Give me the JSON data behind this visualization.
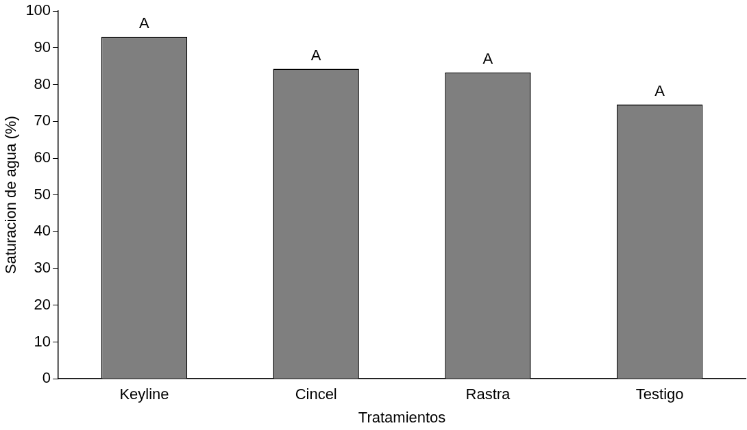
{
  "chart_data": {
    "type": "bar",
    "xlabel": "Tratamientos",
    "ylabel": "Saturacion de agua (%)",
    "categories": [
      "Keyline",
      "Cincel",
      "Rastra",
      "Testigo"
    ],
    "values": [
      93,
      84.3,
      83.3,
      74.6
    ],
    "color": "#7f7f7f",
    "ylim": [
      0,
      100
    ],
    "yticks": [
      0,
      10,
      20,
      30,
      40,
      50,
      60,
      70,
      80,
      90,
      100
    ],
    "grid": false,
    "legend": false,
    "annotations": [
      {
        "text": "A",
        "x": "Keyline",
        "y": 93
      },
      {
        "text": "A",
        "x": "Cincel",
        "y": 84.3
      },
      {
        "text": "A",
        "x": "Rastra",
        "y": 83.3
      },
      {
        "text": "A",
        "x": "Testigo",
        "y": 74.6
      }
    ]
  }
}
